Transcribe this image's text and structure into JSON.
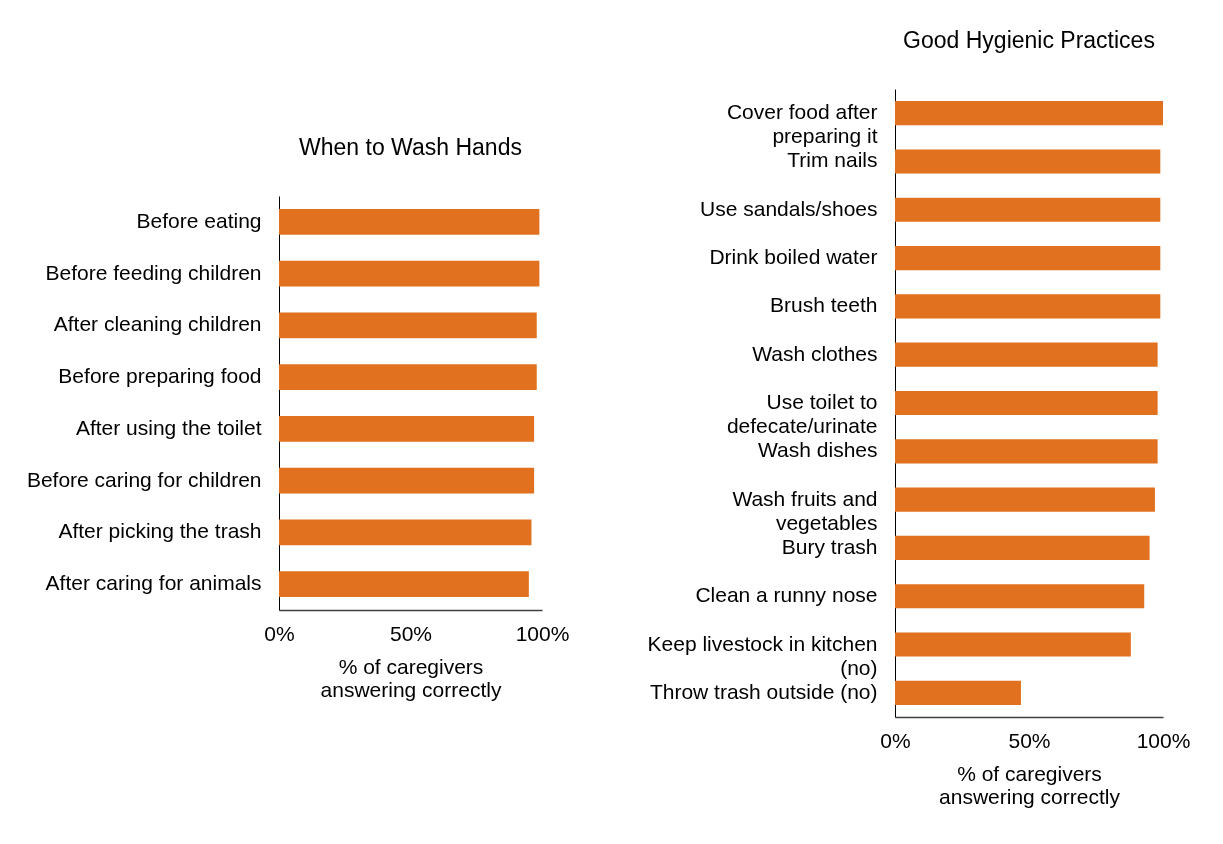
{
  "chart_data": [
    {
      "type": "bar",
      "orientation": "horizontal",
      "title": "When to Wash Hands",
      "categories": [
        "Before eating",
        "Before feeding children",
        "After cleaning children",
        "Before preparing food",
        "After using the toilet",
        "Before caring for children",
        "After picking the trash",
        "After caring for animals"
      ],
      "values": [
        99,
        99,
        98,
        98,
        97,
        97,
        96,
        95
      ],
      "color": "#e2711f",
      "xlim": [
        0,
        100
      ],
      "xticks": [
        {
          "value": 0,
          "label": "0%"
        },
        {
          "value": 50,
          "label": "50%"
        },
        {
          "value": 100,
          "label": "100%"
        }
      ],
      "xlabel": "% of caregivers answering correctly"
    },
    {
      "type": "bar",
      "orientation": "horizontal",
      "title": "Good Hygienic Practices",
      "categories": [
        "Cover food after preparing it",
        "Trim nails",
        "Use sandals/shoes",
        "Drink boiled water",
        "Brush teeth",
        "Wash clothes",
        "Use toilet to defecate/urinate",
        "Wash dishes",
        "Wash fruits and vegetables",
        "Bury trash",
        "Clean a runny nose",
        "Keep livestock in kitchen (no)",
        "Throw trash outside (no)"
      ],
      "values": [
        100,
        99,
        99,
        99,
        99,
        98,
        98,
        98,
        97,
        95,
        93,
        88,
        47
      ],
      "color": "#e2711f",
      "xlim": [
        0,
        100
      ],
      "xticks": [
        {
          "value": 0,
          "label": "0%"
        },
        {
          "value": 50,
          "label": "50%"
        },
        {
          "value": 100,
          "label": "100%"
        }
      ],
      "xlabel": "% of caregivers answering correctly"
    }
  ]
}
